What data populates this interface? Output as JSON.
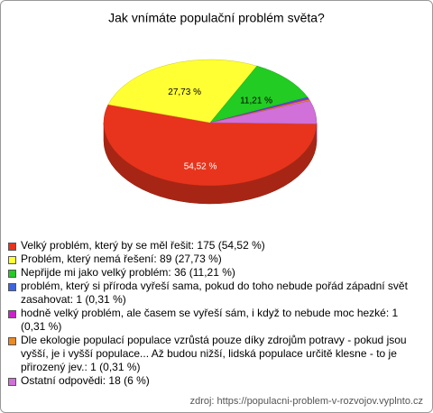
{
  "chart_data": {
    "type": "pie3d",
    "title": "Jak vnímáte populační problém světa?",
    "categories": [
      "Velký problém, který by se měl řešit: 175 (54,52 %)",
      "Problém, který nemá řešení: 89 (27,73 %)",
      "Nepřijde mi jako velký problém: 36 (11,21 %)",
      "problém, který si příroda vyřeší sama, pokud do toho nebude pořád západní svět zasahovat: 1 (0,31 %)",
      "hodně velký problém, ale časem se vyřeší sám, i když to nebude moc hezké: 1 (0,31 %)",
      "Dle ekologie populací populace vzrůstá pouze díky zdrojům potravy - pokud jsou vyšší, je i vyšší populace... Až budou nižší, lidská populace určitě klesne - to je přirozený jev.: 1 (0,31 %)",
      "Ostatní odpovědi: 18 (6 %)"
    ],
    "values": [
      54.52,
      27.73,
      11.21,
      0.31,
      0.31,
      0.31,
      6
    ],
    "value_labels": [
      "54,52 %",
      "27,73 %",
      "11,21 %",
      null,
      null,
      null,
      null
    ],
    "colors": [
      "#e8341c",
      "#ffff33",
      "#22cc22",
      "#3d64e0",
      "#cc22cc",
      "#ee8a22",
      "#d070d8"
    ],
    "source": "zdroj: https://populacni-problem-v-rozvojov.vyplnto.cz"
  }
}
